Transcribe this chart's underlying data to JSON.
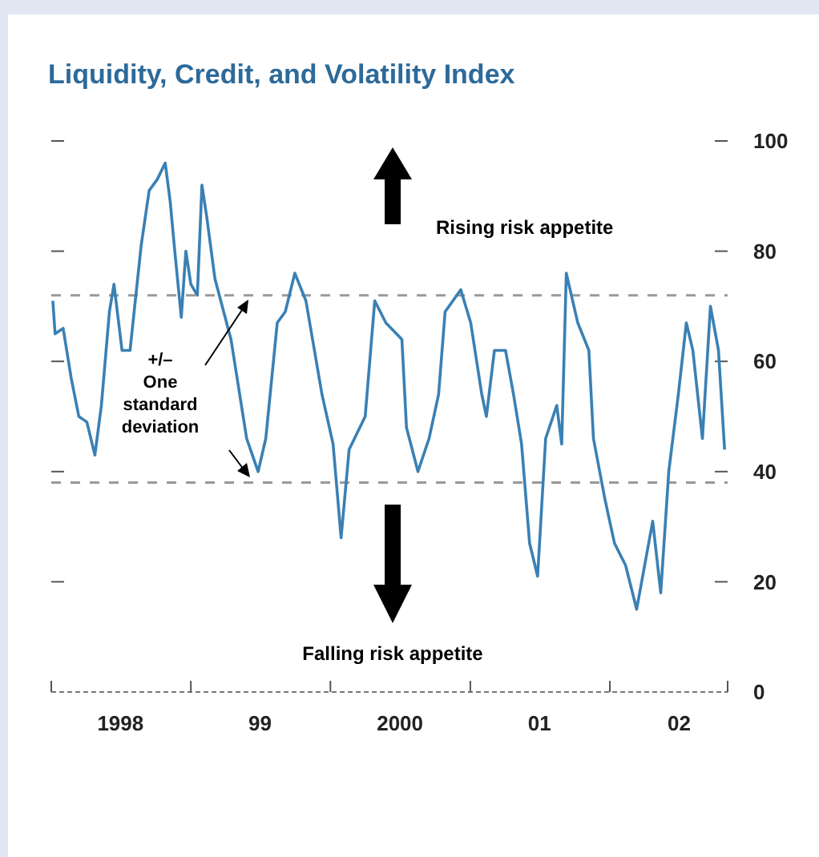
{
  "chart_data": {
    "type": "line",
    "title": "Liquidity, Credit, and Volatility Index",
    "x": [
      "1998-01-05",
      "1998-01-11",
      "1998-02-01",
      "1998-02-22",
      "1998-03-14",
      "1998-04-04",
      "1998-04-25",
      "1998-05-12",
      "1998-06-02",
      "1998-06-14",
      "1998-07-05",
      "1998-07-26",
      "1998-08-24",
      "1998-09-14",
      "1998-10-05",
      "1998-10-26",
      "1998-11-08",
      "1998-11-20",
      "1998-12-07",
      "1998-12-19",
      "1999-01-01",
      "1999-01-18",
      "1999-01-30",
      "1999-02-12",
      "1999-03-05",
      "1999-04-16",
      "1999-05-27",
      "1999-06-26",
      "1999-07-16",
      "1999-08-15",
      "1999-09-05",
      "1999-09-30",
      "1999-10-29",
      "1999-12-10",
      "2000-01-08",
      "2000-01-29",
      "2000-02-19",
      "2000-04-01",
      "2000-04-26",
      "2000-05-25",
      "2000-07-06",
      "2000-07-18",
      "2000-08-17",
      "2000-09-15",
      "2000-10-10",
      "2000-10-27",
      "2000-12-07",
      "2001-01-02",
      "2001-01-31",
      "2001-02-12",
      "2001-03-05",
      "2001-04-03",
      "2001-04-24",
      "2001-05-15",
      "2001-06-05",
      "2001-06-26",
      "2001-07-17",
      "2001-08-15",
      "2001-08-28",
      "2001-09-09",
      "2001-10-09",
      "2001-11-07",
      "2001-11-19",
      "2001-12-19",
      "2002-01-13",
      "2002-02-11",
      "2002-03-12",
      "2002-04-02",
      "2002-04-23",
      "2002-05-14",
      "2002-06-04",
      "2002-06-29",
      "2002-07-20",
      "2002-08-06",
      "2002-08-31",
      "2002-09-21",
      "2002-10-12",
      "2002-10-28"
    ],
    "series": [
      {
        "color": "#3a80b4",
        "values": [
          71,
          65,
          66,
          57,
          50,
          49,
          43,
          52,
          69,
          74,
          62,
          62,
          81,
          91,
          93,
          96,
          89,
          80,
          68,
          80,
          74,
          72,
          92,
          86,
          75,
          64,
          46,
          40,
          46,
          67,
          69,
          76,
          71,
          54,
          45,
          28,
          44,
          50,
          71,
          67,
          64,
          48,
          40,
          46,
          54,
          69,
          73,
          67,
          54,
          50,
          62,
          62,
          54,
          45,
          27,
          21,
          46,
          52,
          45,
          76,
          67,
          62,
          46,
          35,
          27,
          23,
          15,
          23,
          31,
          18,
          40,
          54,
          67,
          62,
          46,
          70,
          62,
          44
        ]
      }
    ],
    "xlim": [
      "1998-01-01",
      "2002-11-05"
    ],
    "xticks": [
      {
        "value": "1998-01-01",
        "label": null
      },
      {
        "value": "1998-07-01",
        "label": "1998"
      },
      {
        "value": "1999-01-01",
        "label": null
      },
      {
        "value": "1999-07-01",
        "label": "99"
      },
      {
        "value": "2000-01-01",
        "label": null
      },
      {
        "value": "2000-07-01",
        "label": "2000"
      },
      {
        "value": "2001-01-01",
        "label": null
      },
      {
        "value": "2001-07-01",
        "label": "01"
      },
      {
        "value": "2002-01-01",
        "label": null
      },
      {
        "value": "2002-07-01",
        "label": "02"
      },
      {
        "value": "2002-11-05",
        "label": null
      }
    ],
    "ylim": [
      0,
      100
    ],
    "yticks": [
      0,
      20,
      40,
      60,
      80,
      100
    ],
    "grid": false,
    "line_style": "solid",
    "marker": "none",
    "ref_lines": [
      {
        "axis": "y",
        "value": 72,
        "label": null,
        "color": "#999999",
        "line_style": "dashed"
      },
      {
        "axis": "y",
        "value": 38,
        "label": null,
        "color": "#999999",
        "line_style": "dashed"
      }
    ],
    "annotations": [
      "Rising risk appetite",
      "Falling risk appetite",
      "+/– One standard deviation"
    ]
  }
}
